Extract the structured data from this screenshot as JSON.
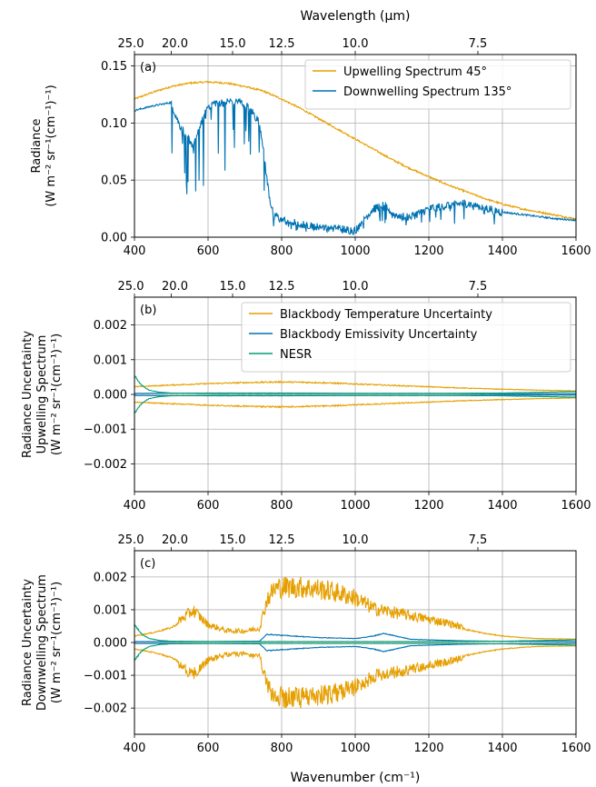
{
  "colors": {
    "orange": "#E69F00",
    "blue": "#0072B2",
    "green": "#009E73",
    "grid": "#b0b0b0"
  },
  "x_axis": {
    "ticks": [
      400,
      600,
      800,
      1000,
      1200,
      1400,
      1600
    ],
    "label": "Wavenumber (cm⁻¹)"
  },
  "top_axis": {
    "title": "Wavelength (μm)",
    "ticks": [
      {
        "label": "25.0",
        "wavenumber": 400
      },
      {
        "label": "20.0",
        "wavenumber": 500
      },
      {
        "label": "15.0",
        "wavenumber": 666.67
      },
      {
        "label": "12.5",
        "wavenumber": 800
      },
      {
        "label": "10.0",
        "wavenumber": 1000
      },
      {
        "label": "7.5",
        "wavenumber": 1333.33
      }
    ]
  },
  "chart_data": [
    {
      "type": "line",
      "panel_label": "(a)",
      "ylabel_lines": [
        "Radiance",
        "(W m⁻² sr⁻¹(cm⁻¹)⁻¹)"
      ],
      "xlim": [
        400,
        1600
      ],
      "ylim": [
        0,
        0.16
      ],
      "yticks": [
        0.0,
        0.05,
        0.1,
        0.15
      ],
      "ytick_labels": [
        "0.00",
        "0.05",
        "0.10",
        "0.15"
      ],
      "legend_position": "top-right",
      "series": [
        {
          "name": "Upwelling Spectrum 45°",
          "color_key": "orange",
          "x": [
            400,
            450,
            500,
            550,
            600,
            650,
            667,
            700,
            750,
            800,
            850,
            900,
            950,
            1000,
            1050,
            1100,
            1150,
            1200,
            1250,
            1300,
            1350,
            1400,
            1450,
            1500,
            1550,
            1600
          ],
          "y": [
            0.121,
            0.127,
            0.132,
            0.135,
            0.136,
            0.135,
            0.134,
            0.132,
            0.128,
            0.121,
            0.113,
            0.104,
            0.095,
            0.086,
            0.077,
            0.068,
            0.06,
            0.053,
            0.046,
            0.04,
            0.034,
            0.029,
            0.025,
            0.022,
            0.019,
            0.016
          ]
        },
        {
          "name": "Downwelling Spectrum 135°",
          "color_key": "blue",
          "x": [
            400,
            450,
            500,
            520,
            540,
            560,
            580,
            600,
            620,
            640,
            660,
            680,
            700,
            720,
            740,
            750,
            760,
            770,
            780,
            800,
            850,
            900,
            950,
            1000,
            1020,
            1050,
            1080,
            1100,
            1150,
            1200,
            1250,
            1300,
            1350,
            1400,
            1450,
            1500,
            1550,
            1600
          ],
          "y": [
            0.111,
            0.115,
            0.118,
            0.1,
            0.09,
            0.08,
            0.1,
            0.115,
            0.118,
            0.118,
            0.119,
            0.119,
            0.117,
            0.11,
            0.1,
            0.08,
            0.05,
            0.03,
            0.02,
            0.015,
            0.012,
            0.01,
            0.008,
            0.006,
            0.015,
            0.025,
            0.03,
            0.02,
            0.018,
            0.025,
            0.028,
            0.03,
            0.026,
            0.022,
            0.02,
            0.018,
            0.016,
            0.015
          ]
        }
      ]
    },
    {
      "type": "line",
      "panel_label": "(b)",
      "ylabel_lines": [
        "Radiance Uncertainty",
        "Upwelling Spectrum",
        "(W m⁻² sr⁻¹(cm⁻¹)⁻¹)"
      ],
      "xlim": [
        400,
        1600
      ],
      "ylim": [
        -0.0028,
        0.0028
      ],
      "yticks": [
        -0.002,
        -0.001,
        0.0,
        0.001,
        0.002
      ],
      "ytick_labels": [
        "−0.002",
        "−0.001",
        "0.000",
        "0.001",
        "0.002"
      ],
      "legend_position": "top-right",
      "series": [
        {
          "name": "Blackbody Temperature Uncertainty",
          "color_key": "orange",
          "symmetric": true,
          "x": [
            400,
            500,
            600,
            700,
            800,
            900,
            1000,
            1100,
            1200,
            1300,
            1400,
            1500,
            1600
          ],
          "y": [
            0.00022,
            0.00027,
            0.00031,
            0.00034,
            0.00036,
            0.00034,
            0.0003,
            0.00026,
            0.00022,
            0.00018,
            0.00015,
            0.00012,
            0.0001
          ]
        },
        {
          "name": "Blackbody Emissivity Uncertainty",
          "color_key": "blue",
          "symmetric": true,
          "x": [
            400,
            600,
            800,
            1000,
            1200,
            1400,
            1600
          ],
          "y": [
            3e-05,
            4e-05,
            4e-05,
            3e-05,
            3e-05,
            2e-05,
            2e-05
          ]
        },
        {
          "name": "NESR",
          "color_key": "green",
          "symmetric": true,
          "x": [
            400,
            410,
            420,
            440,
            470,
            500,
            600,
            800,
            1000,
            1200,
            1400,
            1500,
            1600
          ],
          "y": [
            0.00055,
            0.0004,
            0.00025,
            0.00012,
            6e-05,
            4e-05,
            3e-05,
            3e-05,
            3e-05,
            3e-05,
            4e-05,
            6e-05,
            8e-05
          ]
        }
      ]
    },
    {
      "type": "line",
      "panel_label": "(c)",
      "ylabel_lines": [
        "Radiance Uncertainty",
        "Downwelling Spectrum",
        "(W m⁻² sr⁻¹(cm⁻¹)⁻¹)"
      ],
      "xlim": [
        400,
        1600
      ],
      "ylim": [
        -0.0028,
        0.0028
      ],
      "yticks": [
        -0.002,
        -0.001,
        0.0,
        0.001,
        0.002
      ],
      "ytick_labels": [
        "−0.002",
        "−0.001",
        "0.000",
        "0.001",
        "0.002"
      ],
      "series": [
        {
          "name": "Blackbody Temperature Uncertainty",
          "color_key": "orange",
          "symmetric": true,
          "x": [
            400,
            450,
            500,
            540,
            560,
            580,
            600,
            650,
            700,
            740,
            760,
            780,
            800,
            850,
            900,
            950,
            1000,
            1050,
            1100,
            1150,
            1200,
            1250,
            1300,
            1350,
            1400,
            1450,
            1500,
            1600
          ],
          "y": [
            0.0002,
            0.0003,
            0.00045,
            0.00075,
            0.0009,
            0.0007,
            0.0005,
            0.00033,
            0.00032,
            0.0004,
            0.0012,
            0.0015,
            0.00155,
            0.00155,
            0.0015,
            0.0014,
            0.00125,
            0.00095,
            0.00085,
            0.00075,
            0.00065,
            0.00055,
            0.0004,
            0.00028,
            0.0002,
            0.00015,
            0.00012,
            0.0001
          ]
        },
        {
          "name": "Blackbody Emissivity Uncertainty",
          "color_key": "blue",
          "symmetric": true,
          "x": [
            400,
            600,
            740,
            760,
            800,
            900,
            1000,
            1050,
            1080,
            1100,
            1150,
            1200,
            1300,
            1400,
            1600
          ],
          "y": [
            3e-05,
            3e-05,
            4e-05,
            0.00025,
            0.00022,
            0.00015,
            0.00012,
            0.0002,
            0.00028,
            0.00022,
            0.0001,
            8e-05,
            5e-05,
            4e-05,
            3e-05
          ]
        },
        {
          "name": "NESR",
          "color_key": "green",
          "symmetric": true,
          "x": [
            400,
            410,
            420,
            440,
            470,
            500,
            600,
            800,
            1000,
            1200,
            1400,
            1500,
            1600
          ],
          "y": [
            0.00055,
            0.0004,
            0.00025,
            0.00012,
            6e-05,
            4e-05,
            3e-05,
            3e-05,
            3e-05,
            3e-05,
            4e-05,
            6e-05,
            8e-05
          ]
        }
      ]
    }
  ]
}
